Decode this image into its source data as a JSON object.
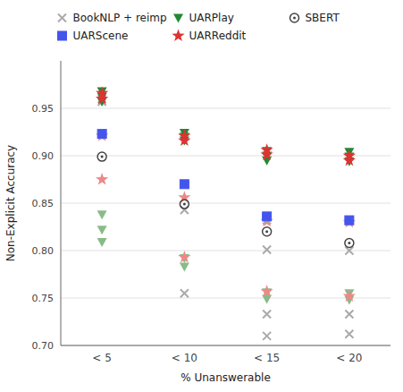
{
  "chart_data": {
    "type": "scatter",
    "categories": [
      "< 5",
      "< 10",
      "< 15",
      "< 20"
    ],
    "xlabel": "% Unanswerable",
    "ylabel": "Non-Explicit Accuracy",
    "ylim": [
      0.7,
      1.0
    ],
    "yticks": [
      {
        "value": 0.7,
        "label": "0.70"
      },
      {
        "value": 0.75,
        "label": "0.75"
      },
      {
        "value": 0.8,
        "label": "0.80"
      },
      {
        "value": 0.85,
        "label": "0.85"
      },
      {
        "value": 0.9,
        "label": "0.90"
      },
      {
        "value": 0.95,
        "label": "0.95"
      }
    ],
    "grid": true,
    "legend": "top",
    "series": [
      {
        "name": "BookNLP + reimp",
        "color": "#aaaaaa",
        "marker": "x",
        "x": [
          "< 5",
          "< 5",
          "< 10",
          "< 10",
          "< 15",
          "< 15",
          "< 15",
          "< 15",
          "< 20",
          "< 20",
          "< 20",
          "< 20"
        ],
        "values": [
          0.96,
          0.957,
          0.843,
          0.755,
          0.832,
          0.801,
          0.733,
          0.71,
          0.831,
          0.8,
          0.733,
          0.712
        ]
      },
      {
        "name": "UARPlay",
        "color": "#228833",
        "marker": "triangle-down",
        "x": [
          "< 5",
          "< 5",
          "< 5",
          "< 10",
          "< 10",
          "< 10",
          "< 15",
          "< 15",
          "< 15",
          "< 20",
          "< 20",
          "< 20"
        ],
        "values": [
          0.968,
          0.962,
          0.957,
          0.924,
          0.92,
          0.916,
          0.905,
          0.9,
          0.895,
          0.904,
          0.899,
          0.894
        ]
      },
      {
        "name": "SBERT",
        "color": "#444444",
        "marker": "circle-dot",
        "x": [
          "< 5",
          "< 10",
          "< 15",
          "< 20"
        ],
        "values": [
          0.899,
          0.849,
          0.82,
          0.808
        ]
      },
      {
        "name": "UARScene",
        "color": "#4455ee",
        "marker": "square",
        "x": [
          "< 5",
          "< 10",
          "< 15",
          "< 20"
        ],
        "values": [
          0.923,
          0.87,
          0.836,
          0.832
        ]
      },
      {
        "name": "UARReddit",
        "color": "#dd3333",
        "marker": "star",
        "x": [
          "< 5",
          "< 5",
          "< 10",
          "< 10",
          "< 15",
          "< 15",
          "< 20",
          "< 20"
        ],
        "values": [
          0.966,
          0.96,
          0.921,
          0.916,
          0.906,
          0.901,
          0.9,
          0.895
        ]
      },
      {
        "color": "#88bb88",
        "marker": "triangle-down",
        "x": [
          "< 5",
          "< 5",
          "< 5",
          "< 10",
          "< 10",
          "< 15",
          "< 15",
          "< 20",
          "< 20"
        ],
        "values": [
          0.838,
          0.822,
          0.809,
          0.792,
          0.783,
          0.756,
          0.749,
          0.755,
          0.748
        ]
      },
      {
        "color": "#ee8888",
        "marker": "star",
        "x": [
          "< 5",
          "< 5",
          "< 10",
          "< 10",
          "< 15",
          "< 15",
          "< 20",
          "< 20"
        ],
        "values": [
          0.921,
          0.875,
          0.856,
          0.793,
          0.831,
          0.757,
          0.83,
          0.752
        ]
      }
    ]
  }
}
